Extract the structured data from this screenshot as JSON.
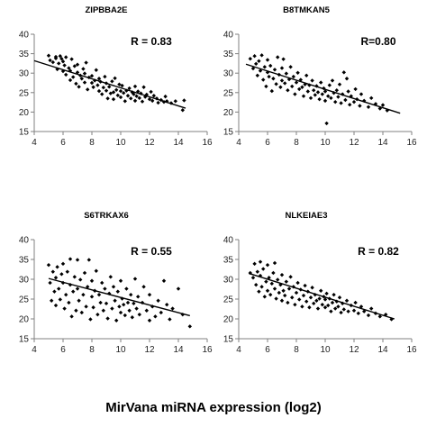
{
  "figure": {
    "xlabel": "MirVana miRNA expression (log2)"
  },
  "chart_data": [
    {
      "type": "scatter",
      "title": "ZIPBBA2E",
      "annotation": "R = 0.83",
      "xlim": [
        4,
        16
      ],
      "ylim": [
        15,
        40
      ],
      "xticks": [
        4,
        6,
        8,
        10,
        12,
        14,
        16
      ],
      "yticks": [
        15,
        20,
        25,
        30,
        35,
        40
      ],
      "fit_line": {
        "x": [
          4,
          14.5
        ],
        "y": [
          33.2,
          21.0
        ]
      },
      "points": [
        [
          5,
          34.5
        ],
        [
          5.1,
          33.3
        ],
        [
          5.3,
          32.8
        ],
        [
          5.5,
          33.8
        ],
        [
          5.5,
          34.2
        ],
        [
          5.6,
          31
        ],
        [
          5.7,
          32.5
        ],
        [
          5.8,
          34.4
        ],
        [
          5.9,
          33.7
        ],
        [
          6,
          30.5
        ],
        [
          6,
          33
        ],
        [
          6.1,
          32
        ],
        [
          6.2,
          29.6
        ],
        [
          6.2,
          34.1
        ],
        [
          6.4,
          31.3
        ],
        [
          6.5,
          28.2
        ],
        [
          6.5,
          30.6
        ],
        [
          6.6,
          33.6
        ],
        [
          6.7,
          29
        ],
        [
          6.8,
          31.8
        ],
        [
          6.9,
          27.3
        ],
        [
          7,
          30.2
        ],
        [
          7,
          32.2
        ],
        [
          7.1,
          26.5
        ],
        [
          7.2,
          29.4
        ],
        [
          7.3,
          28.6
        ],
        [
          7.4,
          31.1
        ],
        [
          7.5,
          27.6
        ],
        [
          7.5,
          29.9
        ],
        [
          7.6,
          32.7
        ],
        [
          7.7,
          25.8
        ],
        [
          7.8,
          28.9
        ],
        [
          8,
          27.5
        ],
        [
          8,
          29.3
        ],
        [
          8.1,
          26.4
        ],
        [
          8.2,
          28.1
        ],
        [
          8.3,
          30.8
        ],
        [
          8.4,
          26.9
        ],
        [
          8.5,
          28.6
        ],
        [
          8.5,
          25.4
        ],
        [
          8.6,
          27.8
        ],
        [
          8.7,
          24.6
        ],
        [
          8.8,
          26.3
        ],
        [
          8.9,
          29.1
        ],
        [
          9,
          25.5
        ],
        [
          9,
          27.4
        ],
        [
          9.1,
          23.5
        ],
        [
          9.2,
          26.5
        ],
        [
          9.3,
          24.8
        ],
        [
          9.4,
          27.9
        ],
        [
          9.5,
          25.1
        ],
        [
          9.5,
          23.3
        ],
        [
          9.6,
          28.7
        ],
        [
          9.7,
          25.7
        ],
        [
          9.8,
          24.3
        ],
        [
          9.9,
          27.1
        ],
        [
          10,
          25.4
        ],
        [
          10,
          23.8
        ],
        [
          10.1,
          26.8
        ],
        [
          10.2,
          24.9
        ],
        [
          10.3,
          22.8
        ],
        [
          10.4,
          25.5
        ],
        [
          10.5,
          24.2
        ],
        [
          10.6,
          26.1
        ],
        [
          10.7,
          23.5
        ],
        [
          10.8,
          25.1
        ],
        [
          10.9,
          24.6
        ],
        [
          11,
          22.9
        ],
        [
          11,
          26.6
        ],
        [
          11.1,
          24.1
        ],
        [
          11.2,
          25.3
        ],
        [
          11.3,
          23.6
        ],
        [
          11.4,
          24.8
        ],
        [
          11.5,
          22.7
        ],
        [
          11.6,
          26.4
        ],
        [
          11.7,
          23.9
        ],
        [
          11.8,
          24.5
        ],
        [
          12,
          23.3
        ],
        [
          12.1,
          25.2
        ],
        [
          12.2,
          22.9
        ],
        [
          12.3,
          24.2
        ],
        [
          12.5,
          23.5
        ],
        [
          12.6,
          22.4
        ],
        [
          12.8,
          23.1
        ],
        [
          13,
          22.6
        ],
        [
          13.1,
          24
        ],
        [
          13.2,
          22.8
        ],
        [
          13.5,
          22.3
        ],
        [
          13.8,
          22.8
        ],
        [
          14.3,
          20.5
        ],
        [
          14.4,
          23
        ]
      ]
    },
    {
      "type": "scatter",
      "title": "B8TMKAN5",
      "annotation": "R=0.80",
      "xlim": [
        4,
        16
      ],
      "ylim": [
        15,
        40
      ],
      "xticks": [
        4,
        6,
        8,
        10,
        12,
        14,
        16
      ],
      "yticks": [
        15,
        20,
        25,
        30,
        35,
        40
      ],
      "fit_line": {
        "x": [
          4.5,
          15.2
        ],
        "y": [
          32.3,
          19.7
        ]
      },
      "points": [
        [
          4.8,
          33.7
        ],
        [
          5,
          31.2
        ],
        [
          5.1,
          34.4
        ],
        [
          5.2,
          32.4
        ],
        [
          5.3,
          29.4
        ],
        [
          5.4,
          33.1
        ],
        [
          5.5,
          30.6
        ],
        [
          5.6,
          34.6
        ],
        [
          5.7,
          28.3
        ],
        [
          5.8,
          31.6
        ],
        [
          5.9,
          26.6
        ],
        [
          6,
          30.2
        ],
        [
          6,
          33.4
        ],
        [
          6.1,
          29.1
        ],
        [
          6.2,
          31.9
        ],
        [
          6.3,
          25.4
        ],
        [
          6.4,
          28.6
        ],
        [
          6.5,
          30.9
        ],
        [
          6.6,
          27.2
        ],
        [
          6.7,
          34.1
        ],
        [
          6.8,
          29.6
        ],
        [
          6.9,
          26.4
        ],
        [
          7,
          31.3
        ],
        [
          7,
          28.1
        ],
        [
          7.1,
          33.6
        ],
        [
          7.2,
          27.4
        ],
        [
          7.3,
          29.9
        ],
        [
          7.4,
          25.6
        ],
        [
          7.5,
          28.4
        ],
        [
          7.6,
          31.6
        ],
        [
          7.7,
          26.6
        ],
        [
          7.8,
          29.1
        ],
        [
          7.9,
          24.6
        ],
        [
          8,
          27.6
        ],
        [
          8.1,
          30.1
        ],
        [
          8.2,
          25.9
        ],
        [
          8.3,
          28.3
        ],
        [
          8.4,
          26.4
        ],
        [
          8.5,
          24.1
        ],
        [
          8.6,
          27.1
        ],
        [
          8.7,
          29.4
        ],
        [
          8.8,
          25.3
        ],
        [
          8.9,
          26.9
        ],
        [
          9,
          23.6
        ],
        [
          9.1,
          28.1
        ],
        [
          9.2,
          25.6
        ],
        [
          9.3,
          24.4
        ],
        [
          9.4,
          26.7
        ],
        [
          9.5,
          25.1
        ],
        [
          9.6,
          23.3
        ],
        [
          9.7,
          27.6
        ],
        [
          9.8,
          24.6
        ],
        [
          9.9,
          26.1
        ],
        [
          10,
          22.9
        ],
        [
          10,
          25.3
        ],
        [
          10.1,
          17.1
        ],
        [
          10.2,
          24.1
        ],
        [
          10.3,
          26.9
        ],
        [
          10.4,
          23.6
        ],
        [
          10.5,
          28.1
        ],
        [
          10.6,
          24.9
        ],
        [
          10.7,
          22.6
        ],
        [
          10.8,
          25.6
        ],
        [
          10.9,
          23.9
        ],
        [
          11,
          27.1
        ],
        [
          11.1,
          22.3
        ],
        [
          11.2,
          24.6
        ],
        [
          11.3,
          30.2
        ],
        [
          11.4,
          23.1
        ],
        [
          11.5,
          28.6
        ],
        [
          11.6,
          25.3
        ],
        [
          11.7,
          21.9
        ],
        [
          11.8,
          24.1
        ],
        [
          12,
          22.6
        ],
        [
          12.1,
          25.9
        ],
        [
          12.2,
          23.3
        ],
        [
          12.4,
          21.6
        ],
        [
          12.5,
          24.6
        ],
        [
          12.7,
          22.9
        ],
        [
          13,
          21.3
        ],
        [
          13.2,
          23.6
        ],
        [
          13.5,
          22.1
        ],
        [
          13.8,
          20.9
        ],
        [
          14,
          21.8
        ],
        [
          14.3,
          20.4
        ]
      ]
    },
    {
      "type": "scatter",
      "title": "S6TRKAX6",
      "annotation": "R = 0.55",
      "xlim": [
        4,
        16
      ],
      "ylim": [
        15,
        40
      ],
      "xticks": [
        4,
        6,
        8,
        10,
        12,
        14,
        16
      ],
      "yticks": [
        15,
        20,
        25,
        30,
        35,
        40
      ],
      "fit_line": {
        "x": [
          5,
          14.8
        ],
        "y": [
          30.2,
          20.8
        ]
      },
      "points": [
        [
          5,
          33.6
        ],
        [
          5.1,
          29.1
        ],
        [
          5.2,
          24.6
        ],
        [
          5.3,
          31.9
        ],
        [
          5.4,
          26.9
        ],
        [
          5.5,
          30.4
        ],
        [
          5.5,
          23.4
        ],
        [
          5.6,
          33.1
        ],
        [
          5.7,
          27.6
        ],
        [
          5.8,
          24.9
        ],
        [
          5.9,
          31.3
        ],
        [
          6,
          29.1
        ],
        [
          6,
          33.9
        ],
        [
          6.1,
          22.6
        ],
        [
          6.2,
          26.1
        ],
        [
          6.3,
          31.9
        ],
        [
          6.4,
          24.1
        ],
        [
          6.5,
          28.6
        ],
        [
          6.5,
          35.1
        ],
        [
          6.6,
          20.6
        ],
        [
          6.7,
          26.9
        ],
        [
          6.8,
          30.6
        ],
        [
          6.9,
          22.1
        ],
        [
          7,
          27.6
        ],
        [
          7,
          34.9
        ],
        [
          7.1,
          24.6
        ],
        [
          7.2,
          29.9
        ],
        [
          7.3,
          21.6
        ],
        [
          7.4,
          26.1
        ],
        [
          7.5,
          31.6
        ],
        [
          7.6,
          23.1
        ],
        [
          7.7,
          28.1
        ],
        [
          7.8,
          34.9
        ],
        [
          7.9,
          19.9
        ],
        [
          8,
          25.6
        ],
        [
          8,
          29.6
        ],
        [
          8.1,
          22.9
        ],
        [
          8.2,
          27.1
        ],
        [
          8.3,
          32.1
        ],
        [
          8.4,
          21.1
        ],
        [
          8.5,
          26.1
        ],
        [
          8.6,
          24.1
        ],
        [
          8.7,
          29.1
        ],
        [
          8.8,
          22.1
        ],
        [
          8.9,
          27.6
        ],
        [
          9,
          23.9
        ],
        [
          9.1,
          20.1
        ],
        [
          9.2,
          26.4
        ],
        [
          9.3,
          30.6
        ],
        [
          9.4,
          22.6
        ],
        [
          9.5,
          28.1
        ],
        [
          9.6,
          24.6
        ],
        [
          9.7,
          19.6
        ],
        [
          9.8,
          26.9
        ],
        [
          9.9,
          23.1
        ],
        [
          10,
          29.6
        ],
        [
          10,
          21.6
        ],
        [
          10.1,
          25.1
        ],
        [
          10.2,
          23.6
        ],
        [
          10.3,
          20.9
        ],
        [
          10.4,
          27.6
        ],
        [
          10.5,
          24.1
        ],
        [
          10.6,
          22.1
        ],
        [
          10.7,
          26.1
        ],
        [
          10.8,
          20.4
        ],
        [
          10.9,
          23.9
        ],
        [
          11,
          30.1
        ],
        [
          11.1,
          22.6
        ],
        [
          11.2,
          25.6
        ],
        [
          11.3,
          21.1
        ],
        [
          11.5,
          24.1
        ],
        [
          11.6,
          28.1
        ],
        [
          11.8,
          22.1
        ],
        [
          12,
          19.6
        ],
        [
          12,
          26.1
        ],
        [
          12.2,
          23.1
        ],
        [
          12.4,
          20.6
        ],
        [
          12.6,
          24.6
        ],
        [
          12.8,
          21.6
        ],
        [
          13,
          29.6
        ],
        [
          13.2,
          23.6
        ],
        [
          13.4,
          19.9
        ],
        [
          13.6,
          22.6
        ],
        [
          14,
          27.6
        ],
        [
          14.3,
          21.1
        ],
        [
          14.8,
          18.1
        ]
      ]
    },
    {
      "type": "scatter",
      "title": "NLKEIAE3",
      "annotation": "R = 0.82",
      "xlim": [
        4,
        16
      ],
      "ylim": [
        15,
        40
      ],
      "xticks": [
        4,
        6,
        8,
        10,
        12,
        14,
        16
      ],
      "yticks": [
        15,
        20,
        25,
        30,
        35,
        40
      ],
      "fit_line": {
        "x": [
          4.7,
          14.8
        ],
        "y": [
          31.5,
          20.0
        ]
      },
      "points": [
        [
          4.8,
          31.6
        ],
        [
          5,
          30.4
        ],
        [
          5.1,
          33.9
        ],
        [
          5.2,
          28.6
        ],
        [
          5.3,
          31.9
        ],
        [
          5.4,
          26.9
        ],
        [
          5.5,
          30.9
        ],
        [
          5.5,
          34.4
        ],
        [
          5.6,
          28.1
        ],
        [
          5.7,
          32.6
        ],
        [
          5.8,
          25.6
        ],
        [
          5.9,
          29.4
        ],
        [
          6,
          27.1
        ],
        [
          6,
          33.6
        ],
        [
          6.1,
          30.4
        ],
        [
          6.2,
          26.1
        ],
        [
          6.3,
          28.9
        ],
        [
          6.4,
          31.6
        ],
        [
          6.5,
          27.6
        ],
        [
          6.5,
          34.1
        ],
        [
          6.6,
          25.1
        ],
        [
          6.7,
          29.9
        ],
        [
          6.8,
          26.6
        ],
        [
          6.9,
          28.6
        ],
        [
          7,
          24.6
        ],
        [
          7,
          31.1
        ],
        [
          7.1,
          27.1
        ],
        [
          7.2,
          25.9
        ],
        [
          7.3,
          29.4
        ],
        [
          7.4,
          24.1
        ],
        [
          7.5,
          27.6
        ],
        [
          7.6,
          30.6
        ],
        [
          7.7,
          25.4
        ],
        [
          7.8,
          28.1
        ],
        [
          7.9,
          23.6
        ],
        [
          8,
          26.6
        ],
        [
          8.1,
          29.1
        ],
        [
          8.2,
          24.9
        ],
        [
          8.3,
          27.4
        ],
        [
          8.4,
          23.1
        ],
        [
          8.5,
          25.9
        ],
        [
          8.6,
          28.4
        ],
        [
          8.7,
          24.4
        ],
        [
          8.8,
          26.9
        ],
        [
          8.9,
          22.9
        ],
        [
          9,
          25.4
        ],
        [
          9.1,
          27.9
        ],
        [
          9.2,
          23.9
        ],
        [
          9.3,
          26.1
        ],
        [
          9.4,
          24.6
        ],
        [
          9.5,
          22.6
        ],
        [
          9.6,
          25.1
        ],
        [
          9.7,
          27.1
        ],
        [
          9.8,
          23.6
        ],
        [
          9.9,
          25.6
        ],
        [
          10,
          22.9
        ],
        [
          10,
          24.9
        ],
        [
          10.1,
          26.4
        ],
        [
          10.2,
          23.4
        ],
        [
          10.3,
          25.1
        ],
        [
          10.4,
          21.9
        ],
        [
          10.5,
          24.1
        ],
        [
          10.6,
          26.1
        ],
        [
          10.7,
          22.6
        ],
        [
          10.8,
          24.4
        ],
        [
          10.9,
          23.1
        ],
        [
          11,
          25.4
        ],
        [
          11.1,
          21.6
        ],
        [
          11.2,
          23.9
        ],
        [
          11.3,
          22.4
        ],
        [
          11.5,
          24.6
        ],
        [
          11.6,
          21.9
        ],
        [
          11.8,
          23.4
        ],
        [
          12,
          22.1
        ],
        [
          12.1,
          24.1
        ],
        [
          12.3,
          21.4
        ],
        [
          12.5,
          23.1
        ],
        [
          12.7,
          21.9
        ],
        [
          13,
          20.9
        ],
        [
          13.2,
          22.6
        ],
        [
          13.5,
          21.4
        ],
        [
          13.8,
          20.6
        ],
        [
          14.2,
          21.1
        ],
        [
          14.6,
          19.9
        ]
      ]
    }
  ]
}
